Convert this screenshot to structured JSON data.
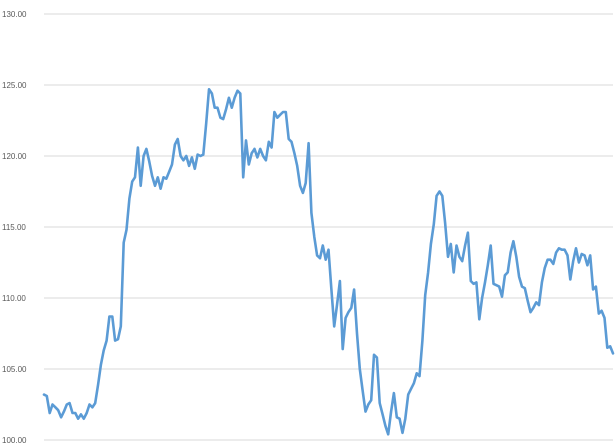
{
  "chart_data": {
    "type": "line",
    "title": "",
    "xlabel": "",
    "ylabel": "",
    "ylim": [
      100,
      130
    ],
    "yticks": [
      "100.00",
      "105.00",
      "110.00",
      "115.00",
      "120.00",
      "125.00",
      "130.00"
    ],
    "grid": true,
    "legend": "none",
    "series": [
      {
        "color": "#5b9bd5",
        "values": [
          103.2,
          103.1,
          101.9,
          102.5,
          102.3,
          102.1,
          101.6,
          102.0,
          102.5,
          102.6,
          101.9,
          101.9,
          101.5,
          101.8,
          101.5,
          101.9,
          102.5,
          102.3,
          102.6,
          103.9,
          105.3,
          106.3,
          107.0,
          108.7,
          108.7,
          107.0,
          107.1,
          108.0,
          113.9,
          114.8,
          117.0,
          118.2,
          118.5,
          120.6,
          117.9,
          120.0,
          120.5,
          119.6,
          118.6,
          117.9,
          118.5,
          117.7,
          118.5,
          118.4,
          118.9,
          119.4,
          120.8,
          121.2,
          120.0,
          119.7,
          120.0,
          119.3,
          119.9,
          119.1,
          120.1,
          120.0,
          120.1,
          122.3,
          124.7,
          124.4,
          123.4,
          123.4,
          122.7,
          122.6,
          123.3,
          124.1,
          123.4,
          124.1,
          124.6,
          124.4,
          118.5,
          121.1,
          119.4,
          120.2,
          120.5,
          119.9,
          120.5,
          120.0,
          119.7,
          121.0,
          120.6,
          123.1,
          122.7,
          122.9,
          123.1,
          123.1,
          121.2,
          121.0,
          120.2,
          119.3,
          117.9,
          117.4,
          118.1,
          120.9,
          116.0,
          114.3,
          113.0,
          112.8,
          113.7,
          112.7,
          113.4,
          110.7,
          108.0,
          109.5,
          111.2,
          106.4,
          108.6,
          109.0,
          109.3,
          110.6,
          107.5,
          105.0,
          103.5,
          102.0,
          102.5,
          102.8,
          106.0,
          105.8,
          102.6,
          101.8,
          101.0,
          100.4,
          102.0,
          103.3,
          101.6,
          101.5,
          100.5,
          101.5,
          103.2,
          103.6,
          104.0,
          104.7,
          104.5,
          107.0,
          110.2,
          111.8,
          113.8,
          115.2,
          117.2,
          117.5,
          117.2,
          115.3,
          112.9,
          113.8,
          111.8,
          113.7,
          112.9,
          112.6,
          113.7,
          114.6,
          111.2,
          111.0,
          111.1,
          108.5,
          110.0,
          111.1,
          112.3,
          113.7,
          111.0,
          110.9,
          110.8,
          110.1,
          111.6,
          111.8,
          113.2,
          114.0,
          112.9,
          111.5,
          110.8,
          110.7,
          109.8,
          109.0,
          109.3,
          109.7,
          109.5,
          111.1,
          112.1,
          112.7,
          112.7,
          112.4,
          113.2,
          113.5,
          113.4,
          113.4,
          113.0,
          111.3,
          112.6,
          113.5,
          112.5,
          113.1,
          113.0,
          112.3,
          113.0,
          110.6,
          110.8,
          108.9,
          109.1,
          108.6,
          106.5,
          106.6,
          106.1
        ]
      }
    ]
  }
}
